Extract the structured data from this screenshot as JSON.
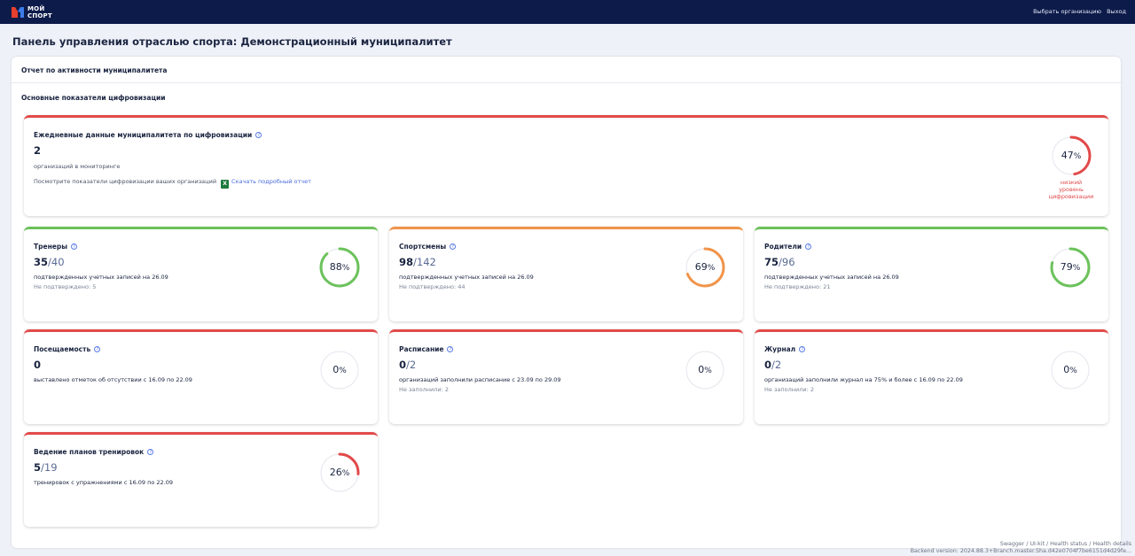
{
  "header": {
    "logo_line1": "МОЙ",
    "logo_line2": "СПОРТ",
    "select_org": "Выбрать организацию",
    "logout": "Выход"
  },
  "page_title": "Панель управления отраслью спорта: Демонстрационный муниципалитет",
  "panel": {
    "header": "Отчет по активности муниципалитета",
    "section_title": "Основные показатели цифровизации"
  },
  "main_card": {
    "title": "Ежедневные данные муниципалитета по цифровизации",
    "value": "2",
    "subtitle": "организаций в мониторинге",
    "note": "Посмотрите показатели цифровизации ваших организаций",
    "excel_icon": "X",
    "download_link": "Скачать подробный отчет",
    "percent": 47,
    "percent_text": "47",
    "level_line1": "низкий",
    "level_line2": "уровень",
    "level_line3": "цифровизации",
    "color": "#e24a4a"
  },
  "cards": [
    {
      "title": "Тренеры",
      "value": "35",
      "total": "/40",
      "subtitle": "подтвержденных учетных записей на 26.09",
      "note": "Не подтверждено: 5",
      "percent": 88,
      "percent_text": "88",
      "color": "#6cc25c"
    },
    {
      "title": "Спортсмены",
      "value": "98",
      "total": "/142",
      "subtitle": "подтвержденных учетных записей на 26.09",
      "note": "Не подтверждено: 44",
      "percent": 69,
      "percent_text": "69",
      "color": "#f0944a"
    },
    {
      "title": "Родители",
      "value": "75",
      "total": "/96",
      "subtitle": "подтвержденных учетных записей на 26.09",
      "note": "Не подтверждено: 21",
      "percent": 79,
      "percent_text": "79",
      "color": "#6cc25c"
    },
    {
      "title": "Посещаемость",
      "value": "0",
      "total": "",
      "subtitle": "выставлено отметок об отсутствии с 16.09 по 22.09",
      "note": "",
      "percent": 0,
      "percent_text": "0",
      "color": "#e24a4a"
    },
    {
      "title": "Расписание",
      "value": "0",
      "total": "/2",
      "subtitle": "организаций заполнили расписание с 23.09 по 29.09",
      "note": "Не заполнили: 2",
      "percent": 0,
      "percent_text": "0",
      "color": "#e24a4a"
    },
    {
      "title": "Журнал",
      "value": "0",
      "total": "/2",
      "subtitle": "организаций заполнили журнал на 75% и более с 16.09 по 22.09",
      "note": "Не заполнили: 2",
      "percent": 0,
      "percent_text": "0",
      "color": "#e24a4a"
    },
    {
      "title": "Ведение планов тренировок",
      "value": "5",
      "total": "/19",
      "subtitle": "тренировок с упражнениями с 16.09 по 22.09",
      "note": "",
      "percent": 26,
      "percent_text": "26",
      "color": "#e24a4a"
    }
  ],
  "footer": {
    "swagger": "Swagger",
    "ui_kit": "UI-kit",
    "health_status": "Health status",
    "health_details": "Health details",
    "backend_version": "Backend version: 2024.88.3+Branch.master.Sha.d42e0704f7be6151d4d29fe..."
  }
}
